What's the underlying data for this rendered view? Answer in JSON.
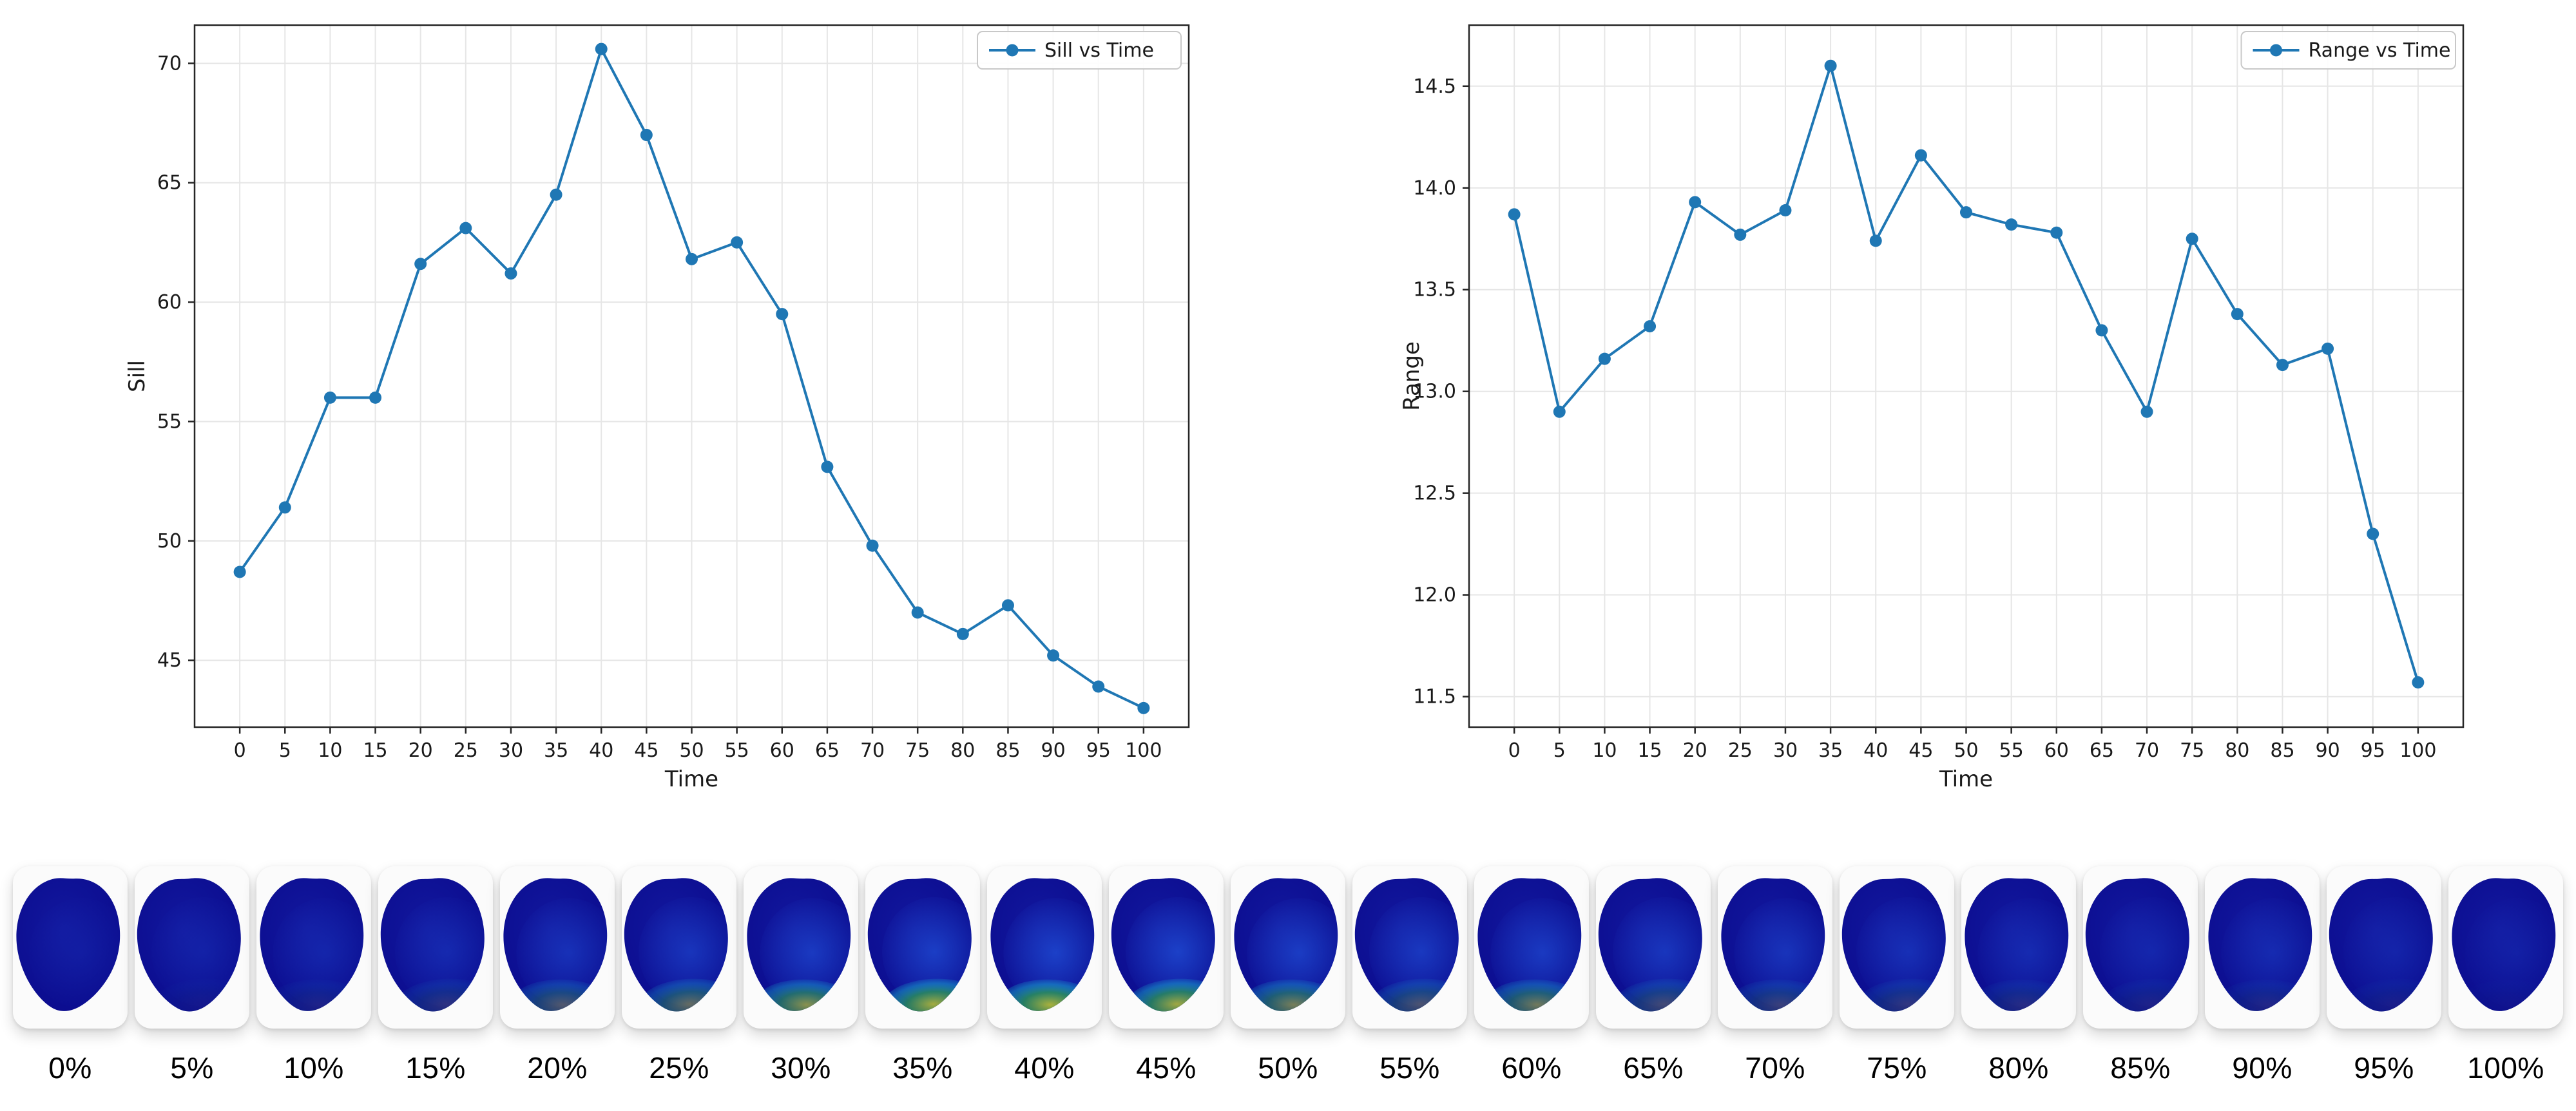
{
  "chart_data": [
    {
      "type": "line",
      "legend_label": "Sill vs Time",
      "xlabel": "Time",
      "ylabel": "Sill",
      "x": [
        0,
        5,
        10,
        15,
        20,
        25,
        30,
        35,
        40,
        45,
        50,
        55,
        60,
        65,
        70,
        75,
        80,
        85,
        90,
        95,
        100
      ],
      "values": [
        48.7,
        51.4,
        56.0,
        56.0,
        61.6,
        63.1,
        61.2,
        64.5,
        70.6,
        67.0,
        61.8,
        62.5,
        59.5,
        53.1,
        49.8,
        47.0,
        46.1,
        47.3,
        45.2,
        43.9,
        43.0
      ],
      "xtick_labels": [
        "0",
        "5",
        "10",
        "15",
        "20",
        "25",
        "30",
        "35",
        "40",
        "45",
        "50",
        "55",
        "60",
        "65",
        "70",
        "75",
        "80",
        "85",
        "90",
        "95",
        "100"
      ],
      "yticks": [
        45,
        50,
        55,
        60,
        65,
        70
      ],
      "ytick_labels": [
        "45",
        "50",
        "55",
        "60",
        "65",
        "70"
      ],
      "xlim": [
        -5,
        105
      ],
      "ylim": [
        42.2,
        71.6
      ],
      "line_color": "#1f77b4",
      "grid": true,
      "legend_position": "upper right"
    },
    {
      "type": "line",
      "legend_label": "Range vs Time",
      "xlabel": "Time",
      "ylabel": "Range",
      "x": [
        0,
        5,
        10,
        15,
        20,
        25,
        30,
        35,
        40,
        45,
        50,
        55,
        60,
        65,
        70,
        75,
        80,
        85,
        90,
        95,
        100
      ],
      "values": [
        13.87,
        12.9,
        13.16,
        13.32,
        13.93,
        13.77,
        13.89,
        14.6,
        13.74,
        14.16,
        13.88,
        13.82,
        13.78,
        13.3,
        12.9,
        13.75,
        13.38,
        13.13,
        13.21,
        12.3,
        11.57
      ],
      "xtick_labels": [
        "0",
        "5",
        "10",
        "15",
        "20",
        "25",
        "30",
        "35",
        "40",
        "45",
        "50",
        "55",
        "60",
        "65",
        "70",
        "75",
        "80",
        "85",
        "90",
        "95",
        "100"
      ],
      "yticks": [
        11.5,
        12.0,
        12.5,
        13.0,
        13.5,
        14.0,
        14.5
      ],
      "ytick_labels": [
        "11.5",
        "12.0",
        "12.5",
        "13.0",
        "13.5",
        "14.0",
        "14.5"
      ],
      "xlim": [
        -5,
        105
      ],
      "ylim": [
        11.35,
        14.8
      ],
      "line_color": "#1f77b4",
      "grid": true,
      "legend_position": "upper right"
    }
  ],
  "thumbnails": {
    "labels": [
      "0%",
      "5%",
      "10%",
      "15%",
      "20%",
      "25%",
      "30%",
      "35%",
      "40%",
      "45%",
      "50%",
      "55%",
      "60%",
      "65%",
      "70%",
      "75%",
      "80%",
      "85%",
      "90%",
      "95%",
      "100%"
    ],
    "base_color": "#0a0a8c",
    "base_center_color": "#12189e",
    "mid_color": "#2257e0",
    "accent_green": "#2fa84f",
    "accent_yellow": "#d9e021",
    "accent_cyan": "#19c7d6"
  }
}
